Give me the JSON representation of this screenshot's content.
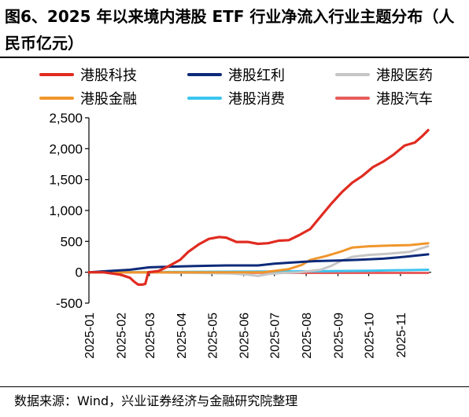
{
  "title": "图6、2025 年以来境内港股 ETF 行业净流入行业主题分布（人民币亿元）",
  "source": "数据来源：Wind，兴业证券经济与金融研究院整理",
  "chart_data": {
    "type": "line",
    "title": "",
    "xlabel": "",
    "ylabel": "",
    "ylim": [
      -500,
      2500
    ],
    "yticks": [
      -500,
      0,
      500,
      1000,
      1500,
      2000,
      2500
    ],
    "ytick_labels": [
      "-500",
      "0",
      "500",
      "1,000",
      "1,500",
      "2,000",
      "2,500"
    ],
    "x_range": [
      "2025-01-01",
      "2025-12-01"
    ],
    "x_ticks": [
      "2025-01",
      "2025-02",
      "2025-03",
      "2025-04",
      "2025-05",
      "2025-06",
      "2025-07",
      "2025-08",
      "2025-09",
      "2025-10",
      "2025-11"
    ],
    "grid": false,
    "legend_position": "top",
    "series": [
      {
        "name": "港股科技",
        "color": "#e02b20",
        "points": [
          [
            "2025-01-01",
            0
          ],
          [
            "2025-01-15",
            0
          ],
          [
            "2025-02-01",
            -40
          ],
          [
            "2025-02-10",
            -90
          ],
          [
            "2025-02-14",
            -150
          ],
          [
            "2025-02-18",
            -200
          ],
          [
            "2025-02-22",
            -200
          ],
          [
            "2025-02-25",
            -190
          ],
          [
            "2025-02-28",
            0
          ],
          [
            "2025-03-10",
            20
          ],
          [
            "2025-03-20",
            100
          ],
          [
            "2025-03-31",
            200
          ],
          [
            "2025-04-08",
            330
          ],
          [
            "2025-04-18",
            450
          ],
          [
            "2025-04-28",
            540
          ],
          [
            "2025-05-08",
            570
          ],
          [
            "2025-05-15",
            560
          ],
          [
            "2025-05-25",
            490
          ],
          [
            "2025-06-05",
            490
          ],
          [
            "2025-06-15",
            460
          ],
          [
            "2025-06-25",
            470
          ],
          [
            "2025-07-05",
            510
          ],
          [
            "2025-07-15",
            520
          ],
          [
            "2025-07-25",
            600
          ],
          [
            "2025-08-05",
            700
          ],
          [
            "2025-08-15",
            900
          ],
          [
            "2025-08-25",
            1100
          ],
          [
            "2025-09-05",
            1300
          ],
          [
            "2025-09-15",
            1450
          ],
          [
            "2025-09-25",
            1560
          ],
          [
            "2025-10-05",
            1700
          ],
          [
            "2025-10-15",
            1790
          ],
          [
            "2025-10-25",
            1900
          ],
          [
            "2025-11-05",
            2050
          ],
          [
            "2025-11-15",
            2100
          ],
          [
            "2025-11-22",
            2200
          ],
          [
            "2025-11-28",
            2300
          ]
        ]
      },
      {
        "name": "港股红利",
        "color": "#0c2a7a",
        "points": [
          [
            "2025-01-01",
            0
          ],
          [
            "2025-01-20",
            20
          ],
          [
            "2025-02-10",
            40
          ],
          [
            "2025-03-01",
            80
          ],
          [
            "2025-03-20",
            90
          ],
          [
            "2025-04-15",
            100
          ],
          [
            "2025-05-15",
            110
          ],
          [
            "2025-06-15",
            110
          ],
          [
            "2025-07-01",
            140
          ],
          [
            "2025-07-20",
            160
          ],
          [
            "2025-08-10",
            180
          ],
          [
            "2025-09-01",
            190
          ],
          [
            "2025-09-20",
            200
          ],
          [
            "2025-10-15",
            220
          ],
          [
            "2025-11-05",
            250
          ],
          [
            "2025-11-28",
            290
          ]
        ]
      },
      {
        "name": "港股医药",
        "color": "#c6c6c6",
        "points": [
          [
            "2025-01-01",
            0
          ],
          [
            "2025-03-01",
            0
          ],
          [
            "2025-05-20",
            -20
          ],
          [
            "2025-06-05",
            -40
          ],
          [
            "2025-06-15",
            -60
          ],
          [
            "2025-06-25",
            -30
          ],
          [
            "2025-07-10",
            -10
          ],
          [
            "2025-07-25",
            0
          ],
          [
            "2025-08-15",
            40
          ],
          [
            "2025-08-25",
            100
          ],
          [
            "2025-09-05",
            190
          ],
          [
            "2025-09-15",
            250
          ],
          [
            "2025-10-01",
            280
          ],
          [
            "2025-10-20",
            300
          ],
          [
            "2025-11-10",
            330
          ],
          [
            "2025-11-28",
            420
          ]
        ]
      },
      {
        "name": "港股金融",
        "color": "#f0962c",
        "points": [
          [
            "2025-01-01",
            0
          ],
          [
            "2025-06-20",
            0
          ],
          [
            "2025-07-15",
            50
          ],
          [
            "2025-07-28",
            120
          ],
          [
            "2025-08-05",
            200
          ],
          [
            "2025-08-20",
            260
          ],
          [
            "2025-09-05",
            340
          ],
          [
            "2025-09-15",
            400
          ],
          [
            "2025-10-01",
            420
          ],
          [
            "2025-10-20",
            430
          ],
          [
            "2025-11-10",
            440
          ],
          [
            "2025-11-28",
            470
          ]
        ]
      },
      {
        "name": "港股消费",
        "color": "#3cc5ef",
        "points": [
          [
            "2025-01-01",
            0
          ],
          [
            "2025-04-01",
            5
          ],
          [
            "2025-06-01",
            10
          ],
          [
            "2025-08-01",
            15
          ],
          [
            "2025-10-01",
            25
          ],
          [
            "2025-11-28",
            40
          ]
        ]
      },
      {
        "name": "港股汽车",
        "color": "#e85d5d",
        "points": [
          [
            "2025-01-01",
            0
          ],
          [
            "2025-04-01",
            -5
          ],
          [
            "2025-06-01",
            -8
          ],
          [
            "2025-08-01",
            -10
          ],
          [
            "2025-10-01",
            -10
          ],
          [
            "2025-11-28",
            -10
          ]
        ]
      }
    ]
  }
}
